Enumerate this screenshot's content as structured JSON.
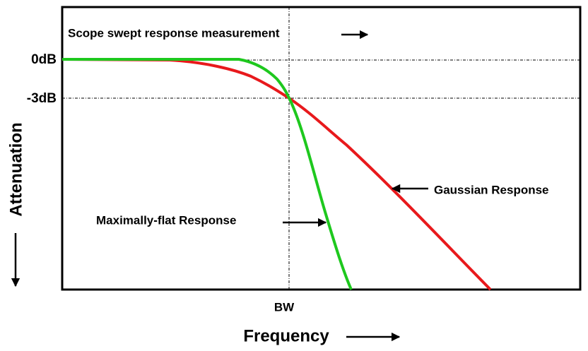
{
  "title": "Scope swept response measurement",
  "y_labels": {
    "zero": "0dB",
    "minus3": "-3dB"
  },
  "y_axis_label": "Attenuation",
  "x_axis_label": "Frequency",
  "x_marker": "BW",
  "annotations": {
    "maximally_flat": "Maximally-flat Response",
    "gaussian": "Gaussian Response"
  }
}
